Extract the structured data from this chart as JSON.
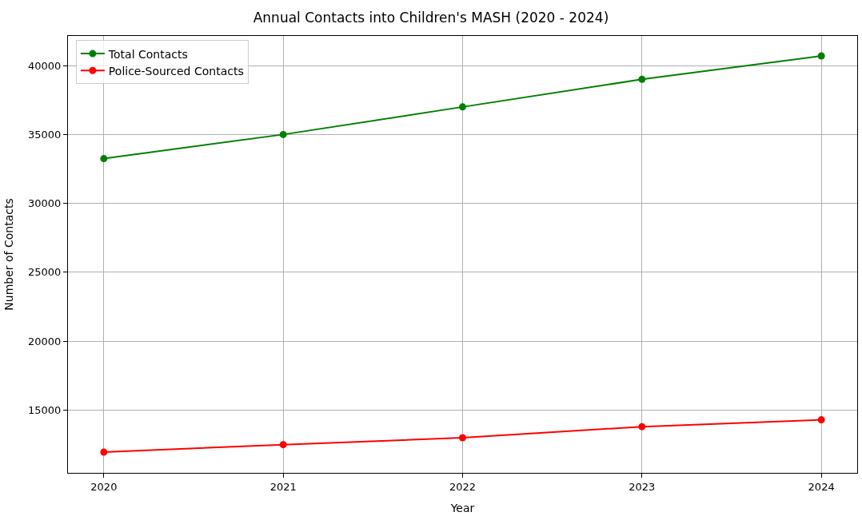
{
  "chart_data": {
    "type": "line",
    "title": "Annual Contacts into Children's MASH (2020 - 2024)",
    "xlabel": "Year",
    "ylabel": "Number of Contacts",
    "x": [
      2020,
      2021,
      2022,
      2023,
      2024
    ],
    "series": [
      {
        "name": "Total Contacts",
        "color": "#008000",
        "values": [
          33250,
          35000,
          37000,
          39000,
          40700
        ]
      },
      {
        "name": "Police-Sourced Contacts",
        "color": "#ff0000",
        "values": [
          11950,
          12500,
          13000,
          13800,
          14300
        ]
      }
    ],
    "xlim": [
      2019.8,
      2024.2
    ],
    "xticks": [
      2020,
      2021,
      2022,
      2023,
      2024
    ],
    "ylim": [
      10450,
      42150
    ],
    "yticks": [
      15000,
      20000,
      25000,
      30000,
      35000,
      40000
    ],
    "grid": true,
    "legend": "top left",
    "marker": "circle",
    "line_style": "solid"
  }
}
